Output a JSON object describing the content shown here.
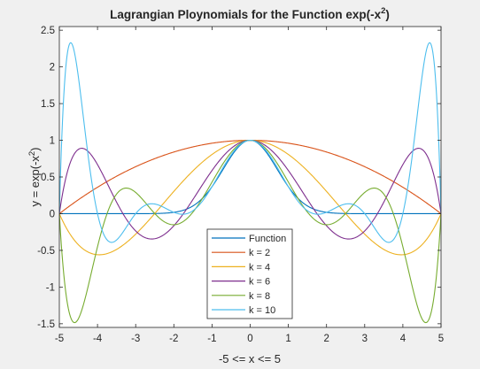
{
  "chart_data": {
    "type": "line",
    "title": {
      "main": "Lagrangian Ploynomials for the Function exp(-x",
      "sup": "2",
      "tail": ")"
    },
    "xlabel": "-5 <= x <= 5",
    "ylabel": {
      "main": "y = exp(-x",
      "sup": "2",
      "tail": ")"
    },
    "xlim": [
      -5,
      5
    ],
    "ylim": [
      -1.55,
      2.55
    ],
    "xticks": [
      -5,
      -4,
      -3,
      -2,
      -1,
      0,
      1,
      2,
      3,
      4,
      5
    ],
    "xtick_labels": [
      "-5",
      "-4",
      "-3",
      "-2",
      "-1",
      "0",
      "1",
      "2",
      "3",
      "4",
      "5"
    ],
    "yticks": [
      -1.5,
      -1,
      -0.5,
      0,
      0.5,
      1,
      1.5,
      2,
      2.5
    ],
    "ytick_labels": [
      "-1.5",
      "-1",
      "-0.5",
      "0",
      "0.5",
      "1",
      "1.5",
      "2",
      "2.5"
    ],
    "grid": false,
    "legend_position": "bottom-center",
    "series": [
      {
        "name": "Function",
        "k": 0,
        "color": "#0072BD"
      },
      {
        "name": "k = 2",
        "k": 2,
        "color": "#D95319"
      },
      {
        "name": "k = 4",
        "k": 4,
        "color": "#EDB120"
      },
      {
        "name": "k = 6",
        "k": 6,
        "color": "#7E2F8E"
      },
      {
        "name": "k = 8",
        "k": 8,
        "color": "#77AC30"
      },
      {
        "name": "k = 10",
        "k": 10,
        "color": "#4DBEEE"
      }
    ]
  }
}
